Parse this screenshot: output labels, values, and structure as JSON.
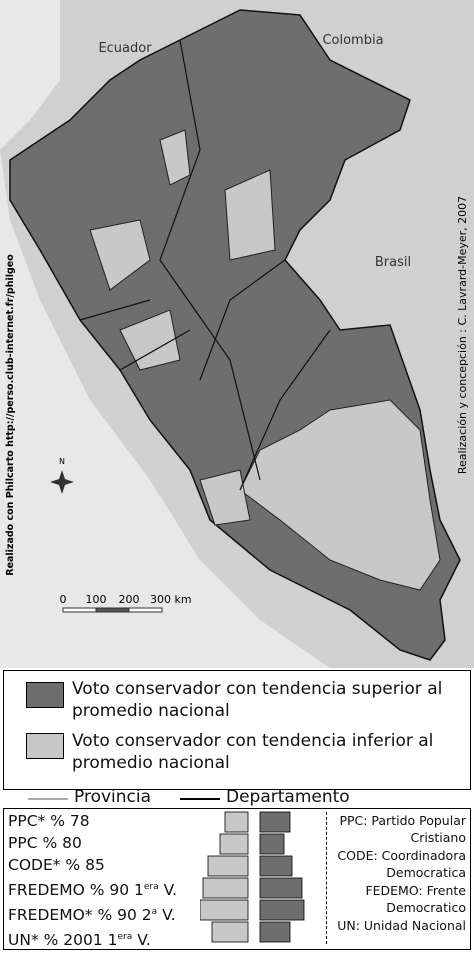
{
  "map": {
    "countries": [
      "Ecuador",
      "Colombia",
      "Brasil"
    ],
    "credit_right": "Realización y concepción : C. Lavrard-Meyer, 2007",
    "credit_left": "Realizado con Philcarto http://perso.club-internet.fr/philgeo",
    "north": "N",
    "scale": [
      "0",
      "100",
      "200",
      "300 km"
    ]
  },
  "legend": {
    "items": [
      "Voto conservador con tendencia superior al promedio nacional",
      "Voto conservador con tendencia inferior al promedio nacional"
    ],
    "lines": [
      "Provincia",
      "Departamento"
    ]
  },
  "elections": {
    "rows": [
      {
        "text": "PPC* % 78"
      },
      {
        "text": "PPC % 80"
      },
      {
        "text": "CODE* % 85"
      },
      {
        "text": "FREDEMO % 90 1",
        "sup": "era",
        "after": " V."
      },
      {
        "text": "FREDEMO* % 90 2",
        "sup": "a",
        "after": " V."
      },
      {
        "text": "UN* % 2001 1",
        "sup": "era",
        "after": " V."
      }
    ]
  },
  "abbreviations": [
    "PPC: Partido Popular Cristiano",
    "CODE: Coordinadora Democratica",
    "FEDEMO: Frente Democratico",
    "UN: Unidad Nacional"
  ]
}
